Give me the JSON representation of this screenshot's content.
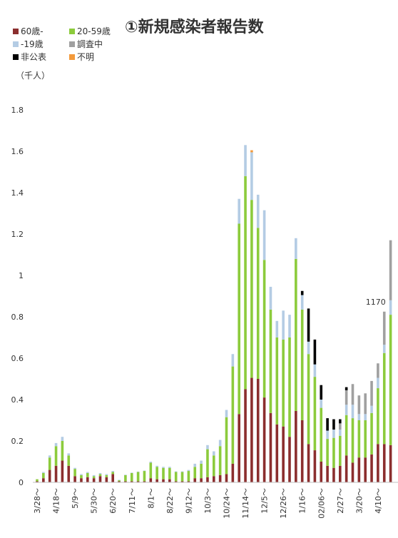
{
  "chart_data": {
    "type": "bar",
    "stacked": true,
    "title": "①新規感染者報告数",
    "unit_label": "（千人）",
    "ylim": [
      0,
      1.8
    ],
    "yticks": [
      "0",
      "0.2",
      "0.4",
      "0.6",
      "0.8",
      "1",
      "1.2",
      "1.4",
      "1.6",
      "1.8"
    ],
    "grid": false,
    "legend_position": "top-left",
    "annotation": {
      "text": "1170",
      "category_index": 55
    },
    "x_tick_labels": [
      {
        "index": 0,
        "label": "3/28～"
      },
      {
        "index": 3,
        "label": "4/18～"
      },
      {
        "index": 6,
        "label": "5/9～"
      },
      {
        "index": 9,
        "label": "5/30～"
      },
      {
        "index": 12,
        "label": "6/20～"
      },
      {
        "index": 15,
        "label": "7/11～"
      },
      {
        "index": 18,
        "label": "8/1～"
      },
      {
        "index": 21,
        "label": "8/22～"
      },
      {
        "index": 24,
        "label": "9/12～"
      },
      {
        "index": 27,
        "label": "10/3～"
      },
      {
        "index": 30,
        "label": "10/24～"
      },
      {
        "index": 33,
        "label": "11/14～"
      },
      {
        "index": 36,
        "label": "12/5～"
      },
      {
        "index": 39,
        "label": "12/26～"
      },
      {
        "index": 42,
        "label": "1/16～"
      },
      {
        "index": 45,
        "label": "02/06～"
      },
      {
        "index": 48,
        "label": "2/27～"
      },
      {
        "index": 51,
        "label": "3/20～"
      },
      {
        "index": 54,
        "label": "4/10～"
      }
    ],
    "categories": [
      "3/28～",
      "",
      "",
      "4/18～",
      "",
      "",
      "5/9～",
      "",
      "",
      "5/30～",
      "",
      "",
      "6/20～",
      "",
      "",
      "7/11～",
      "",
      "",
      "8/1～",
      "",
      "",
      "8/22～",
      "",
      "",
      "9/12～",
      "",
      "",
      "10/3～",
      "",
      "",
      "10/24～",
      "",
      "",
      "11/14～",
      "",
      "",
      "12/5～",
      "",
      "",
      "12/26～",
      "",
      "",
      "1/16～",
      "",
      "",
      "02/06～",
      "",
      "",
      "2/27～",
      "",
      "",
      "3/20～",
      "",
      "",
      "4/10～",
      "",
      ""
    ],
    "series": [
      {
        "name": "60歳-",
        "color": "#8B2E2E",
        "values": [
          0.005,
          0.02,
          0.06,
          0.08,
          0.105,
          0.08,
          0.03,
          0.02,
          0.025,
          0.02,
          0.03,
          0.025,
          0.04,
          0.005,
          0.005,
          0.005,
          0.005,
          0.005,
          0.02,
          0.015,
          0.015,
          0.015,
          0.005,
          0.005,
          0.005,
          0.02,
          0.02,
          0.025,
          0.03,
          0.035,
          0.04,
          0.09,
          0.33,
          0.45,
          0.505,
          0.5,
          0.41,
          0.335,
          0.28,
          0.27,
          0.22,
          0.345,
          0.3,
          0.185,
          0.155,
          0.1,
          0.08,
          0.07,
          0.08,
          0.13,
          0.095,
          0.12,
          0.12,
          0.135,
          0.185,
          0.185,
          0.18
        ]
      },
      {
        "name": "20-59歳",
        "color": "#8CCB3C",
        "values": [
          0.01,
          0.025,
          0.06,
          0.095,
          0.095,
          0.05,
          0.035,
          0.015,
          0.02,
          0.01,
          0.01,
          0.01,
          0.01,
          0.005,
          0.03,
          0.04,
          0.045,
          0.05,
          0.075,
          0.06,
          0.055,
          0.055,
          0.045,
          0.045,
          0.05,
          0.055,
          0.07,
          0.135,
          0.1,
          0.14,
          0.275,
          0.47,
          0.92,
          1.03,
          0.86,
          0.73,
          0.665,
          0.5,
          0.42,
          0.42,
          0.48,
          0.735,
          0.535,
          0.435,
          0.355,
          0.26,
          0.13,
          0.145,
          0.145,
          0.195,
          0.215,
          0.18,
          0.18,
          0.2,
          0.27,
          0.44,
          0.63
        ]
      },
      {
        "name": "-19歳",
        "color": "#B4CCE4",
        "values": [
          0.0,
          0.005,
          0.01,
          0.015,
          0.02,
          0.01,
          0.005,
          0.005,
          0.005,
          0.005,
          0.005,
          0.005,
          0.005,
          0.002,
          0.002,
          0.002,
          0.002,
          0.002,
          0.005,
          0.005,
          0.005,
          0.005,
          0.003,
          0.003,
          0.005,
          0.015,
          0.015,
          0.02,
          0.02,
          0.03,
          0.035,
          0.06,
          0.12,
          0.15,
          0.23,
          0.16,
          0.24,
          0.11,
          0.08,
          0.14,
          0.11,
          0.1,
          0.07,
          0.06,
          0.06,
          0.04,
          0.04,
          0.04,
          0.03,
          0.05,
          0.065,
          0.03,
          0.03,
          0.035,
          0.05,
          0.04,
          0.07
        ]
      },
      {
        "name": "調査中",
        "color": "#A0A0A0",
        "values": [
          0,
          0,
          0,
          0,
          0,
          0,
          0,
          0,
          0,
          0,
          0,
          0,
          0,
          0,
          0,
          0,
          0,
          0,
          0,
          0,
          0,
          0,
          0,
          0,
          0,
          0,
          0,
          0,
          0,
          0,
          0,
          0,
          0,
          0,
          0,
          0,
          0,
          0,
          0,
          0,
          0,
          0,
          0,
          0,
          0,
          0,
          0,
          0,
          0.03,
          0.07,
          0.1,
          0.09,
          0.1,
          0.12,
          0.07,
          0.16,
          0.29
        ]
      },
      {
        "name": "非公表",
        "color": "#000000",
        "values": [
          0,
          0,
          0,
          0,
          0,
          0,
          0,
          0,
          0,
          0,
          0,
          0,
          0,
          0,
          0,
          0,
          0,
          0,
          0,
          0,
          0,
          0,
          0,
          0,
          0,
          0,
          0,
          0,
          0,
          0,
          0,
          0,
          0,
          0,
          0,
          0,
          0,
          0,
          0,
          0,
          0,
          0,
          0.02,
          0.16,
          0.12,
          0.07,
          0.06,
          0.05,
          0.02,
          0.015,
          0,
          0,
          0,
          0,
          0,
          0,
          0
        ]
      },
      {
        "name": "不明",
        "color": "#F39A3B",
        "values": [
          0,
          0,
          0,
          0,
          0,
          0,
          0,
          0,
          0,
          0,
          0,
          0,
          0,
          0,
          0,
          0,
          0,
          0,
          0,
          0,
          0,
          0,
          0,
          0,
          0,
          0,
          0,
          0,
          0,
          0,
          0,
          0,
          0,
          0,
          0.01,
          0,
          0,
          0,
          0,
          0,
          0,
          0,
          0,
          0,
          0,
          0,
          0,
          0,
          0,
          0,
          0,
          0,
          0,
          0,
          0,
          0,
          0
        ]
      }
    ]
  }
}
